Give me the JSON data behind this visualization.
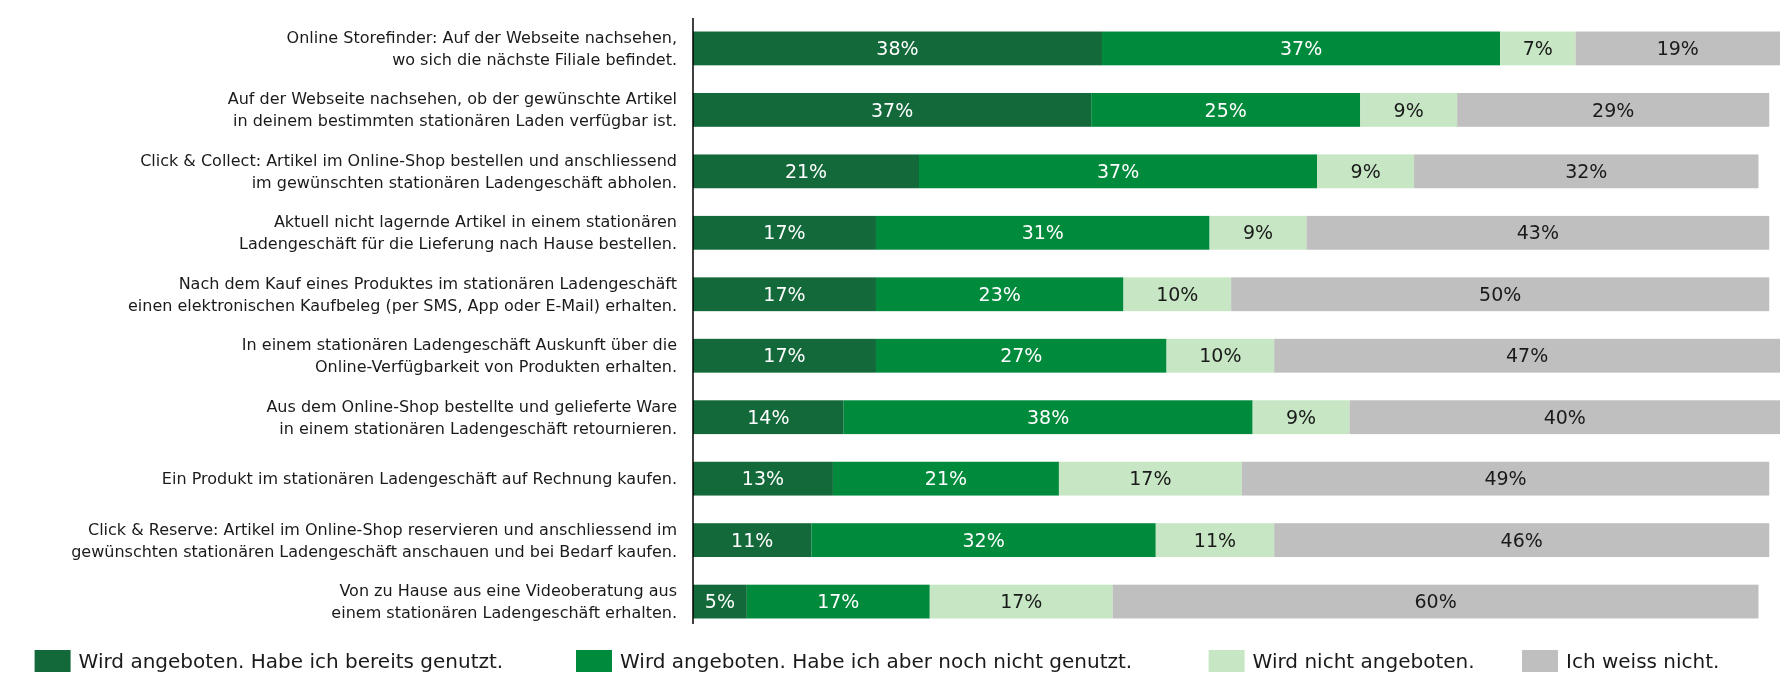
{
  "chart_data": {
    "type": "bar",
    "orientation": "horizontal",
    "stacked": true,
    "legend": "bottom",
    "categories": [
      "Online Storefinder: Auf der Webseite nachsehen,\nwo sich die nächste Filiale befindet.",
      "Auf der Webseite nachsehen, ob der gewünschte Artikel\nin deinem bestimmten stationären Laden verfügbar ist.",
      "Click & Collect: Artikel im Online-Shop bestellen und anschliessend\nim gewünschten stationären Ladengeschäft abholen.",
      "Aktuell nicht lagernde Artikel in einem stationären\nLadengeschäft für die Lieferung nach Hause bestellen.",
      "Nach dem Kauf eines Produktes im stationären Ladengeschäft\neinen elektronischen Kaufbeleg (per SMS, App oder E-Mail) erhalten.",
      "In einem stationären Ladengeschäft Auskunft über die\nOnline-Verfügbarkeit von Produkten erhalten.",
      "Aus dem Online-Shop bestellte und gelieferte Ware\nin einem stationären Ladengeschäft retournieren.",
      "Ein Produkt im stationären Ladengeschäft auf Rechnung kaufen.",
      "Click & Reserve: Artikel im Online-Shop reservieren und anschliessend im\ngewünschten stationären Ladengeschäft anschauen und bei Bedarf kaufen.",
      "Von zu Hause aus eine Videoberatung aus\neinem stationären Ladengeschäft erhalten."
    ],
    "series": [
      {
        "name": "Wird angeboten. Habe ich bereits genutzt.",
        "color": "#13693a",
        "values": [
          38,
          37,
          21,
          17,
          17,
          17,
          14,
          13,
          11,
          5
        ],
        "value_labels": [
          "38%",
          "37%",
          "21%",
          "17%",
          "17%",
          "17%",
          "14%",
          "13%",
          "11%",
          "5%"
        ]
      },
      {
        "name": "Wird angeboten. Habe ich aber noch nicht genutzt.",
        "color": "#008a3c",
        "values": [
          37,
          25,
          37,
          31,
          23,
          27,
          38,
          21,
          32,
          17
        ],
        "value_labels": [
          "37%",
          "25%",
          "37%",
          "31%",
          "23%",
          "27%",
          "38%",
          "21%",
          "32%",
          "17%"
        ]
      },
      {
        "name": "Wird nicht angeboten.",
        "color": "#c6e6c4",
        "values": [
          7,
          9,
          9,
          9,
          10,
          10,
          9,
          17,
          11,
          17
        ],
        "value_labels": [
          "7%",
          "9%",
          "9%",
          "9%",
          "10%",
          "10%",
          "9%",
          "17%",
          "11%",
          "17%"
        ]
      },
      {
        "name": "Ich weiss nicht.",
        "color": "#bfbfbf",
        "values": [
          19,
          29,
          32,
          43,
          50,
          47,
          40,
          49,
          46,
          60
        ],
        "value_labels": [
          "19%",
          "29%",
          "32%",
          "43%",
          "50%",
          "47%",
          "40%",
          "49%",
          "46%",
          "60%"
        ]
      }
    ]
  }
}
